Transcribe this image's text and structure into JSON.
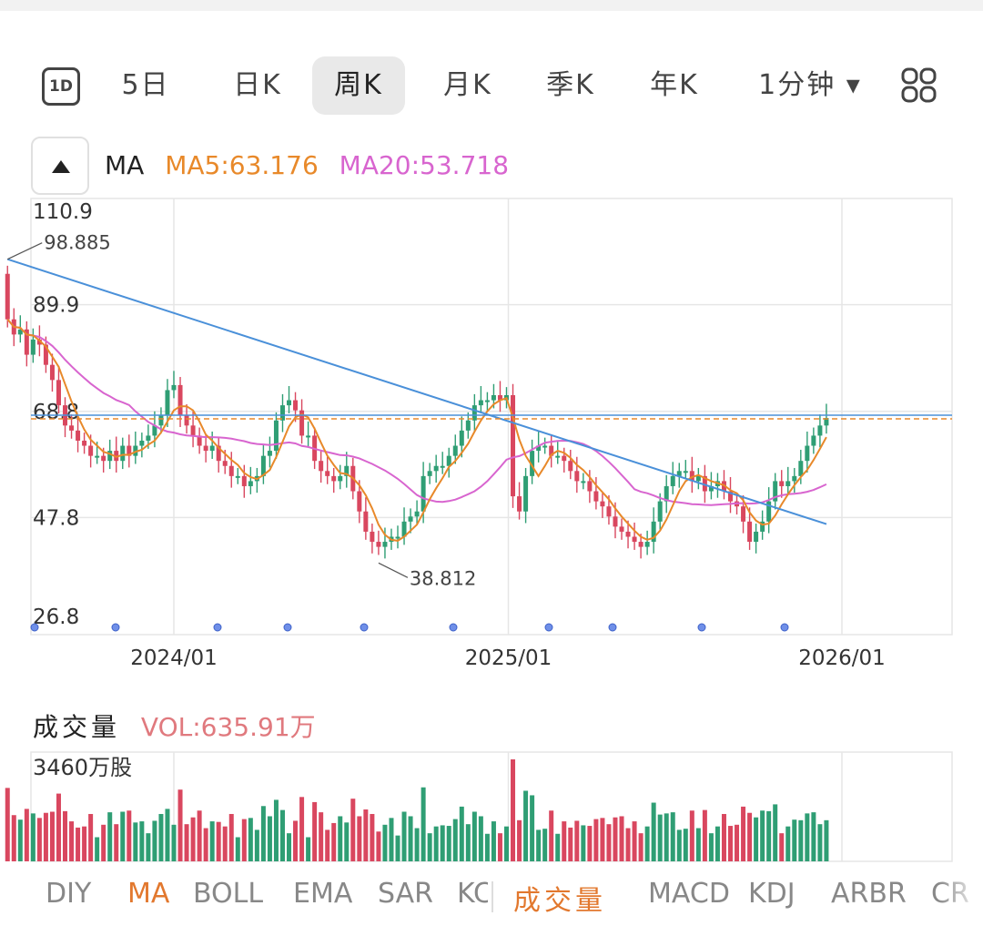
{
  "tabs": [
    {
      "label": "1D",
      "icon": "calendar-1d-icon"
    },
    {
      "label": "5日"
    },
    {
      "label": "日K"
    },
    {
      "label": "周K",
      "active": true
    },
    {
      "label": "月K"
    },
    {
      "label": "季K"
    },
    {
      "label": "年K"
    },
    {
      "label": "1分钟 ▾"
    }
  ],
  "grid_icon": "grid-layout-icon",
  "ma_legend": {
    "title": "MA",
    "ma5": "MA5:63.176",
    "ma20": "MA20:53.718"
  },
  "vol_legend": {
    "title": "成交量",
    "value": "VOL:635.91万"
  },
  "colors": {
    "up": "#2f9e74",
    "down": "#d9475f",
    "ma5": "#e8892a",
    "ma20": "#d865cf",
    "trend": "#4a90d9",
    "grid": "#e6e6e6"
  },
  "indicators": [
    "DIY",
    "MA",
    "BOLL",
    "EMA",
    "SAR",
    "KC",
    "成交量",
    "MACD",
    "KDJ",
    "ARBR",
    "CR"
  ],
  "active_indicator": "成交量",
  "chart_data": {
    "type": "candlestick",
    "y_ticks": [
      "110.9",
      "89.9",
      "68.8",
      "47.8",
      "26.8"
    ],
    "ylim": [
      26.8,
      110.9
    ],
    "x_ticks": [
      "2024/01",
      "2025/01",
      "2026/01"
    ],
    "annotations": [
      {
        "text": "98.885",
        "value": 98.885
      },
      {
        "text": "38.812",
        "value": 38.812
      }
    ],
    "current_price": 67.5,
    "volume_label": "3460万股",
    "weekly": {
      "start_date": "2023-07-03",
      "close": [
        87,
        84,
        85,
        80,
        83,
        82,
        78,
        75,
        70,
        66,
        65,
        63,
        62,
        60,
        60,
        59,
        61,
        59,
        62,
        60,
        62,
        63,
        64,
        66,
        68,
        73,
        74,
        68,
        66,
        64,
        62,
        61,
        62,
        59,
        58,
        56,
        56,
        54,
        55,
        56,
        60,
        61,
        67,
        70,
        71,
        69,
        64,
        64,
        59,
        57,
        56,
        55,
        56,
        58,
        53,
        49,
        45,
        43,
        42,
        43,
        44,
        44,
        47,
        48,
        49,
        56,
        57,
        58,
        58,
        60,
        62,
        65,
        67,
        70,
        71,
        71,
        72,
        71,
        72,
        52,
        49,
        56,
        61,
        62,
        62,
        60,
        60,
        59,
        57,
        55,
        55,
        53,
        51,
        50,
        48,
        46,
        45,
        44,
        43,
        42,
        43,
        47,
        51,
        54,
        56,
        57,
        57,
        55,
        56,
        53,
        54,
        55,
        53,
        51,
        50,
        47,
        43,
        45,
        47,
        51,
        55,
        54,
        55,
        56,
        59,
        62,
        64,
        66,
        67.5
      ],
      "dojis": [
        [
          28,
          60
        ],
        [
          39,
          62
        ]
      ]
    },
    "ma5_value": 63.176,
    "ma20_value": 53.718,
    "volume_shown": 635.91
  }
}
